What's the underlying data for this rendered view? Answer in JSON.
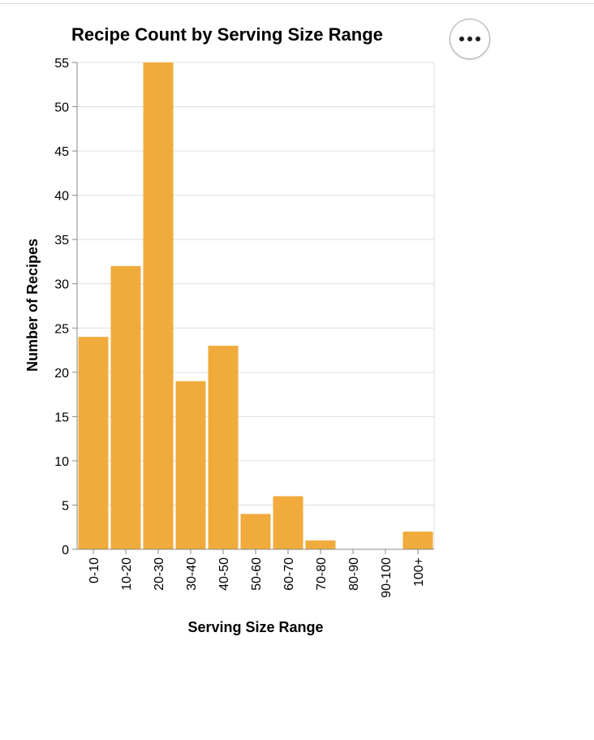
{
  "chart_data": {
    "type": "bar",
    "title": "Recipe Count by Serving Size Range",
    "xlabel": "Serving Size Range",
    "ylabel": "Number of Recipes",
    "categories": [
      "0-10",
      "10-20",
      "20-30",
      "30-40",
      "40-50",
      "50-60",
      "60-70",
      "70-80",
      "80-90",
      "90-100",
      "100+"
    ],
    "values": [
      24,
      32,
      55,
      19,
      23,
      4,
      6,
      1,
      0,
      0,
      2
    ],
    "ylim": [
      0,
      55
    ],
    "yticks": [
      0,
      5,
      10,
      15,
      20,
      25,
      30,
      35,
      40,
      45,
      50,
      55
    ],
    "grid": true,
    "bar_color": "#f0ab3c"
  },
  "actions_menu": {
    "icon": "more-horizontal-icon"
  }
}
